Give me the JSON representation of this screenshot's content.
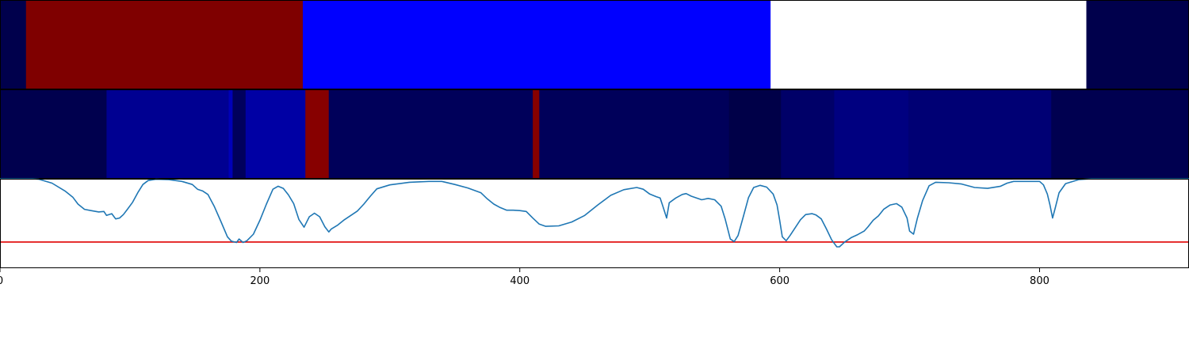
{
  "chart_data": [
    {
      "type": "heatmap",
      "panel": "segments-track",
      "xlim": [
        0,
        915
      ],
      "segments": [
        {
          "start": 0,
          "end": 20,
          "color": "#00004c"
        },
        {
          "start": 20,
          "end": 233,
          "color": "#7f0000"
        },
        {
          "start": 233,
          "end": 593,
          "color": "#0000ff"
        },
        {
          "start": 593,
          "end": 836,
          "color": "#ffffff"
        },
        {
          "start": 836,
          "end": 915,
          "color": "#00004c"
        }
      ]
    },
    {
      "type": "heatmap",
      "panel": "scores-track",
      "xlim": [
        0,
        915
      ],
      "segments": [
        {
          "start": 0,
          "end": 82,
          "color": "#00004e"
        },
        {
          "start": 82,
          "end": 176,
          "color": "#000091"
        },
        {
          "start": 176,
          "end": 179,
          "color": "#0000b8"
        },
        {
          "start": 179,
          "end": 189,
          "color": "#00005c"
        },
        {
          "start": 189,
          "end": 235,
          "color": "#0000a4"
        },
        {
          "start": 235,
          "end": 253,
          "color": "#870000"
        },
        {
          "start": 253,
          "end": 410,
          "color": "#00005a"
        },
        {
          "start": 410,
          "end": 415,
          "color": "#870000"
        },
        {
          "start": 415,
          "end": 561,
          "color": "#00005a"
        },
        {
          "start": 561,
          "end": 601,
          "color": "#000048"
        },
        {
          "start": 601,
          "end": 642,
          "color": "#000068"
        },
        {
          "start": 642,
          "end": 699,
          "color": "#000080"
        },
        {
          "start": 699,
          "end": 809,
          "color": "#000074"
        },
        {
          "start": 809,
          "end": 915,
          "color": "#000050"
        }
      ]
    },
    {
      "type": "line",
      "panel": "signal-track",
      "xlim": [
        0,
        915
      ],
      "ylim": [
        -1.05,
        1.0
      ],
      "threshold": -0.45,
      "threshold_color": "#e00000",
      "line_color": "#1f77b4",
      "x_ticks": [
        0,
        200,
        400,
        600,
        800
      ],
      "x_tick_labels": [
        "0",
        "200",
        "400",
        "600",
        "800"
      ],
      "series": [
        {
          "points": [
            [
              0,
              1.0
            ],
            [
              25,
              1.0
            ],
            [
              30,
              0.99
            ],
            [
              40,
              0.9
            ],
            [
              50,
              0.72
            ],
            [
              56,
              0.58
            ],
            [
              60,
              0.42
            ],
            [
              65,
              0.3
            ],
            [
              70,
              0.27
            ],
            [
              76,
              0.24
            ],
            [
              80,
              0.25
            ],
            [
              82,
              0.16
            ],
            [
              86,
              0.2
            ],
            [
              89,
              0.08
            ],
            [
              92,
              0.1
            ],
            [
              95,
              0.18
            ],
            [
              98,
              0.3
            ],
            [
              102,
              0.46
            ],
            [
              106,
              0.68
            ],
            [
              110,
              0.87
            ],
            [
              114,
              0.96
            ],
            [
              120,
              0.99
            ],
            [
              130,
              0.98
            ],
            [
              140,
              0.94
            ],
            [
              148,
              0.87
            ],
            [
              152,
              0.76
            ],
            [
              156,
              0.72
            ],
            [
              160,
              0.64
            ],
            [
              165,
              0.36
            ],
            [
              170,
              0.02
            ],
            [
              175,
              -0.33
            ],
            [
              178,
              -0.43
            ],
            [
              182,
              -0.46
            ],
            [
              184,
              -0.38
            ],
            [
              187,
              -0.46
            ],
            [
              190,
              -0.42
            ],
            [
              195,
              -0.27
            ],
            [
              200,
              0.05
            ],
            [
              205,
              0.42
            ],
            [
              210,
              0.76
            ],
            [
              214,
              0.83
            ],
            [
              218,
              0.78
            ],
            [
              222,
              0.63
            ],
            [
              226,
              0.43
            ],
            [
              230,
              0.07
            ],
            [
              234,
              -0.11
            ],
            [
              238,
              0.13
            ],
            [
              242,
              0.21
            ],
            [
              246,
              0.13
            ],
            [
              250,
              -0.1
            ],
            [
              253,
              -0.22
            ],
            [
              255,
              -0.15
            ],
            [
              260,
              -0.06
            ],
            [
              265,
              0.06
            ],
            [
              270,
              0.16
            ],
            [
              275,
              0.26
            ],
            [
              280,
              0.42
            ],
            [
              285,
              0.6
            ],
            [
              290,
              0.77
            ],
            [
              300,
              0.86
            ],
            [
              315,
              0.92
            ],
            [
              330,
              0.94
            ],
            [
              340,
              0.94
            ],
            [
              350,
              0.87
            ],
            [
              360,
              0.79
            ],
            [
              370,
              0.68
            ],
            [
              375,
              0.54
            ],
            [
              380,
              0.42
            ],
            [
              385,
              0.34
            ],
            [
              390,
              0.28
            ],
            [
              395,
              0.28
            ],
            [
              400,
              0.27
            ],
            [
              405,
              0.25
            ],
            [
              410,
              0.1
            ],
            [
              415,
              -0.04
            ],
            [
              420,
              -0.09
            ],
            [
              430,
              -0.08
            ],
            [
              440,
              0.01
            ],
            [
              450,
              0.16
            ],
            [
              460,
              0.4
            ],
            [
              470,
              0.62
            ],
            [
              480,
              0.75
            ],
            [
              490,
              0.8
            ],
            [
              495,
              0.76
            ],
            [
              500,
              0.65
            ],
            [
              505,
              0.59
            ],
            [
              508,
              0.56
            ],
            [
              510,
              0.38
            ],
            [
              513,
              0.1
            ],
            [
              515,
              0.45
            ],
            [
              520,
              0.56
            ],
            [
              525,
              0.64
            ],
            [
              528,
              0.66
            ],
            [
              532,
              0.6
            ],
            [
              540,
              0.52
            ],
            [
              545,
              0.55
            ],
            [
              550,
              0.52
            ],
            [
              555,
              0.37
            ],
            [
              558,
              0.08
            ],
            [
              562,
              -0.38
            ],
            [
              565,
              -0.44
            ],
            [
              568,
              -0.3
            ],
            [
              572,
              0.13
            ],
            [
              576,
              0.57
            ],
            [
              580,
              0.8
            ],
            [
              585,
              0.85
            ],
            [
              590,
              0.81
            ],
            [
              595,
              0.65
            ],
            [
              598,
              0.4
            ],
            [
              600,
              0.05
            ],
            [
              602,
              -0.33
            ],
            [
              605,
              -0.42
            ],
            [
              608,
              -0.3
            ],
            [
              612,
              -0.12
            ],
            [
              616,
              0.06
            ],
            [
              620,
              0.18
            ],
            [
              625,
              0.2
            ],
            [
              628,
              0.17
            ],
            [
              632,
              0.08
            ],
            [
              636,
              -0.15
            ],
            [
              640,
              -0.4
            ],
            [
              644,
              -0.56
            ],
            [
              646,
              -0.56
            ],
            [
              650,
              -0.45
            ],
            [
              655,
              -0.35
            ],
            [
              660,
              -0.28
            ],
            [
              665,
              -0.2
            ],
            [
              668,
              -0.1
            ],
            [
              672,
              0.05
            ],
            [
              676,
              0.15
            ],
            [
              680,
              0.3
            ],
            [
              685,
              0.4
            ],
            [
              690,
              0.43
            ],
            [
              694,
              0.35
            ],
            [
              698,
              0.1
            ],
            [
              700,
              -0.2
            ],
            [
              703,
              -0.27
            ],
            [
              706,
              0.1
            ],
            [
              710,
              0.5
            ],
            [
              715,
              0.84
            ],
            [
              720,
              0.92
            ],
            [
              730,
              0.91
            ],
            [
              740,
              0.88
            ],
            [
              750,
              0.8
            ],
            [
              760,
              0.78
            ],
            [
              770,
              0.83
            ],
            [
              775,
              0.9
            ],
            [
              780,
              0.94
            ],
            [
              790,
              0.94
            ],
            [
              800,
              0.94
            ],
            [
              803,
              0.86
            ],
            [
              806,
              0.65
            ],
            [
              808,
              0.4
            ],
            [
              810,
              0.1
            ],
            [
              812,
              0.32
            ],
            [
              815,
              0.68
            ],
            [
              820,
              0.89
            ],
            [
              830,
              0.98
            ],
            [
              840,
              1.0
            ],
            [
              880,
              1.0
            ],
            [
              915,
              1.0
            ]
          ]
        }
      ]
    }
  ]
}
